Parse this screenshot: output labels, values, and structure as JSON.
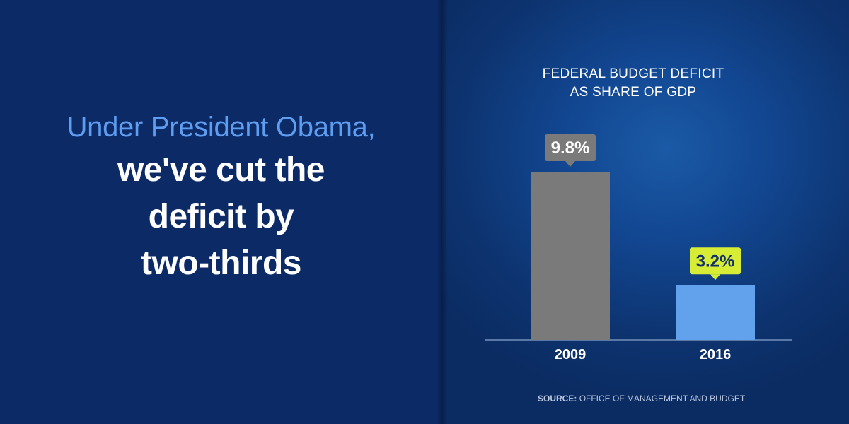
{
  "headline": {
    "lead": "Under President Obama,",
    "lines": [
      "we've cut the",
      "deficit by",
      "two-thirds"
    ]
  },
  "source": {
    "label": "SOURCE:",
    "text": "OFFICE OF MANAGEMENT AND BUDGET"
  },
  "colors": {
    "background": "#0c2a66",
    "lead_text": "#5e9df0",
    "bar_2009": "#7a7a7a",
    "bar_2016": "#62a2ec",
    "callout_2009": "#7a7a7a",
    "callout_2016": "#d6ec35",
    "axis": "#5a78a6"
  },
  "chart_data": {
    "type": "bar",
    "title": [
      "FEDERAL BUDGET DEFICIT",
      "AS SHARE OF GDP"
    ],
    "categories": [
      "2009",
      "2016"
    ],
    "values": [
      9.8,
      3.2
    ],
    "data_labels": [
      "9.8%",
      "3.2%"
    ],
    "ylim": [
      0,
      9.8
    ],
    "grid": false,
    "legend": "none"
  }
}
